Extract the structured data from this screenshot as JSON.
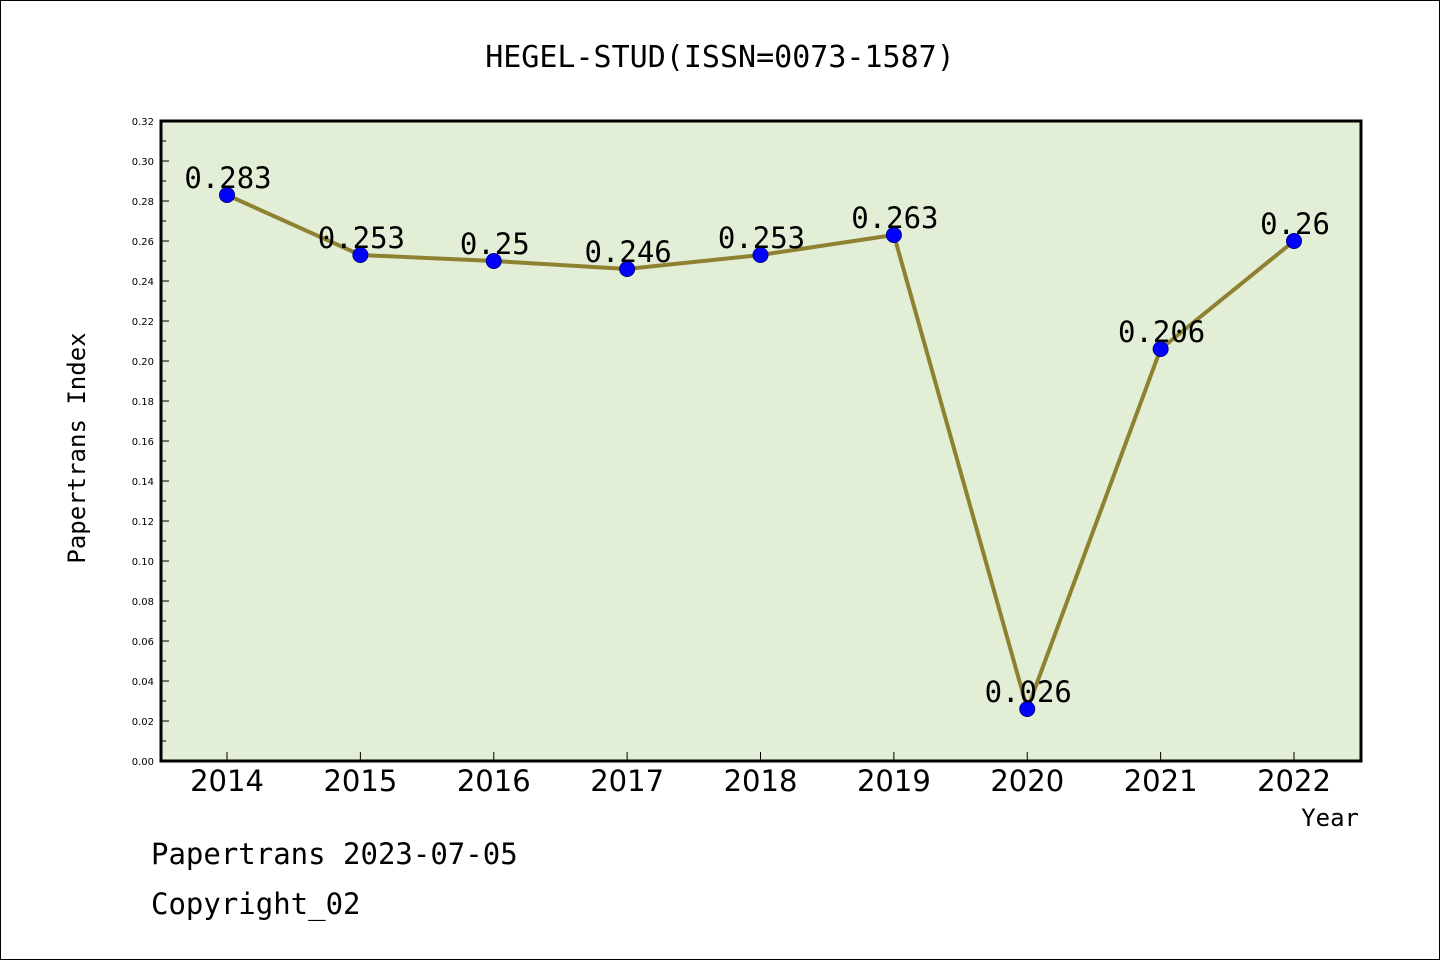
{
  "chart_data": {
    "type": "line",
    "title": "HEGEL-STUD(ISSN=0073-1587)",
    "xlabel": "Year",
    "ylabel": "Papertrans Index",
    "categories": [
      "2014",
      "2015",
      "2016",
      "2017",
      "2018",
      "2019",
      "2020",
      "2021",
      "2022"
    ],
    "values": [
      0.283,
      0.253,
      0.25,
      0.246,
      0.253,
      0.263,
      0.026,
      0.206,
      0.26
    ],
    "value_labels": [
      "0.283",
      "0.253",
      "0.25",
      "0.246",
      "0.253",
      "0.263",
      "0.026",
      "0.206",
      "0.26"
    ],
    "ylim": [
      0,
      0.32
    ],
    "yticks": [
      "0.00",
      "0.02",
      "0.04",
      "0.06",
      "0.08",
      "0.10",
      "0.12",
      "0.14",
      "0.16",
      "0.18",
      "0.20",
      "0.22",
      "0.24",
      "0.26",
      "0.28",
      "0.30",
      "0.32"
    ],
    "grid": false,
    "colors": {
      "plot_background": "#e2efd6",
      "line": "#8f8132",
      "marker": "#0000ff"
    }
  },
  "footer": {
    "date_text": "Papertrans 2023-07-05",
    "copyright_text": "Copyright_02"
  }
}
